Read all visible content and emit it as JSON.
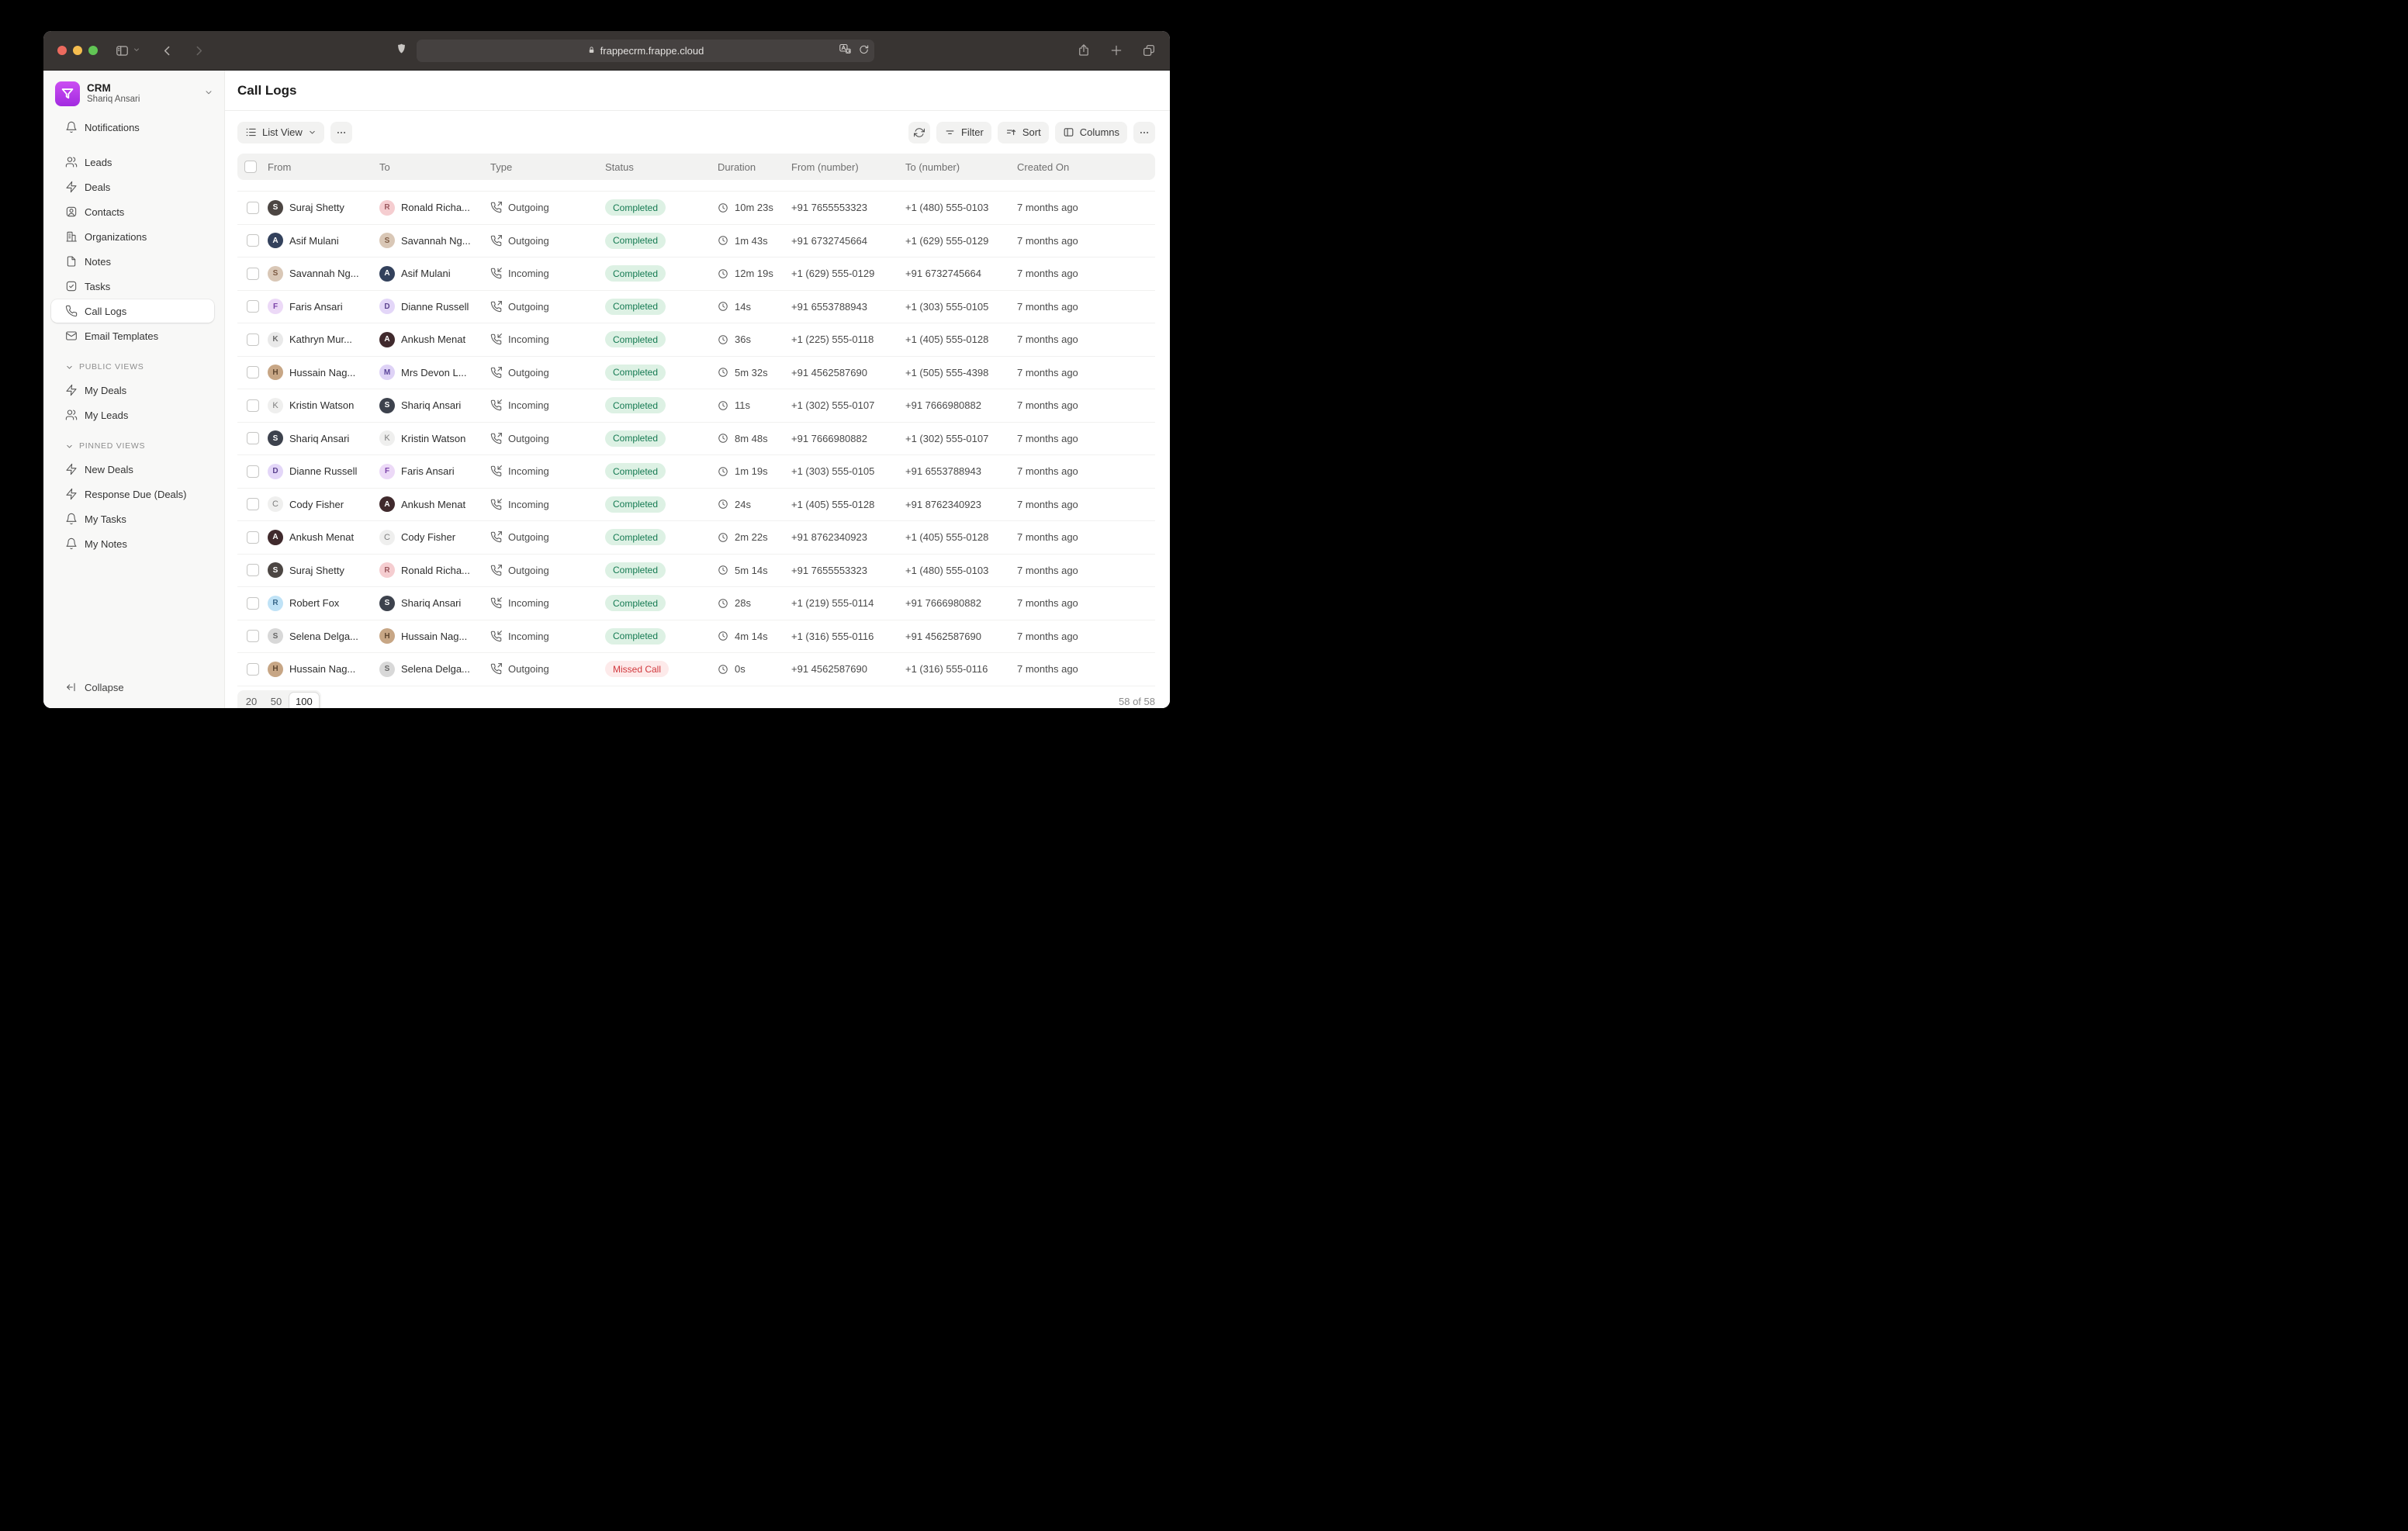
{
  "browser": {
    "url": "frappecrm.frappe.cloud",
    "titlebar_icons": [
      "sidebar-toggle-icon",
      "chevron-down-icon",
      "back-icon",
      "forward-icon",
      "shield-icon",
      "lock-icon",
      "translate-icon",
      "reload-icon",
      "share-icon",
      "new-tab-icon",
      "tabs-icon"
    ]
  },
  "app_header": {
    "app_name": "CRM",
    "user_name": "Shariq Ansari"
  },
  "sidebar": {
    "items": [
      {
        "label": "Notifications",
        "icon": "bell-icon",
        "active": false
      },
      {
        "label": "Leads",
        "icon": "users-icon",
        "active": false
      },
      {
        "label": "Deals",
        "icon": "zap-icon",
        "active": false
      },
      {
        "label": "Contacts",
        "icon": "contact-card-icon",
        "active": false
      },
      {
        "label": "Organizations",
        "icon": "building-icon",
        "active": false
      },
      {
        "label": "Notes",
        "icon": "file-icon",
        "active": false
      },
      {
        "label": "Tasks",
        "icon": "check-square-icon",
        "active": false
      },
      {
        "label": "Call Logs",
        "icon": "phone-icon",
        "active": true
      },
      {
        "label": "Email Templates",
        "icon": "mail-icon",
        "active": false
      }
    ],
    "sections": [
      {
        "title": "PUBLIC VIEWS",
        "items": [
          {
            "label": "My Deals",
            "icon": "zap-icon"
          },
          {
            "label": "My Leads",
            "icon": "users-icon"
          }
        ]
      },
      {
        "title": "PINNED VIEWS",
        "items": [
          {
            "label": "New Deals",
            "icon": "zap-icon"
          },
          {
            "label": "Response Due (Deals)",
            "icon": "zap-icon"
          },
          {
            "label": "My Tasks",
            "icon": "bell-icon"
          },
          {
            "label": "My Notes",
            "icon": "bell-icon"
          }
        ]
      }
    ],
    "collapse_label": "Collapse"
  },
  "main": {
    "title": "Call Logs",
    "toolbar": {
      "view_button": "List View",
      "more_button": "...",
      "filter_label": "Filter",
      "sort_label": "Sort",
      "columns_label": "Columns"
    },
    "table": {
      "headers": [
        "From",
        "To",
        "Type",
        "Status",
        "Duration",
        "From (number)",
        "To (number)",
        "Created On"
      ],
      "rows": [
        {
          "from": {
            "name": "Suraj Shetty",
            "initial": "S",
            "bg": "#4c4643",
            "fg": "#ffffff",
            "letter": false
          },
          "to": {
            "name": "Ronald Richa...",
            "initial": "R",
            "bg": "#f5cdd0",
            "fg": "#9c5a60",
            "letter": false
          },
          "type": "Outgoing",
          "status": "Completed",
          "duration": "10m 23s",
          "from_number": "+91 7655553323",
          "to_number": "+1 (480) 555-0103",
          "created_on": "7 months ago"
        },
        {
          "from": {
            "name": "Asif Mulani",
            "initial": "A",
            "bg": "#33415c",
            "fg": "#ffffff",
            "letter": false
          },
          "to": {
            "name": "Savannah Ng...",
            "initial": "S",
            "bg": "#d9c7b6",
            "fg": "#7d5b43",
            "letter": false
          },
          "type": "Outgoing",
          "status": "Completed",
          "duration": "1m 43s",
          "from_number": "+91 6732745664",
          "to_number": "+1 (629) 555-0129",
          "created_on": "7 months ago"
        },
        {
          "from": {
            "name": "Savannah Ng...",
            "initial": "S",
            "bg": "#d9c7b6",
            "fg": "#7d5b43",
            "letter": false
          },
          "to": {
            "name": "Asif Mulani",
            "initial": "A",
            "bg": "#33415c",
            "fg": "#ffffff",
            "letter": false
          },
          "type": "Incoming",
          "status": "Completed",
          "duration": "12m 19s",
          "from_number": "+1 (629) 555-0129",
          "to_number": "+91 6732745664",
          "created_on": "7 months ago"
        },
        {
          "from": {
            "name": "Faris Ansari",
            "initial": "F",
            "bg": "#ecd9f7",
            "fg": "#7b42a8",
            "letter": false
          },
          "to": {
            "name": "Dianne Russell",
            "initial": "D",
            "bg": "#e3d6f8",
            "fg": "#5c438f",
            "letter": false
          },
          "type": "Outgoing",
          "status": "Completed",
          "duration": "14s",
          "from_number": "+91 6553788943",
          "to_number": "+1 (303) 555-0105",
          "created_on": "7 months ago"
        },
        {
          "from": {
            "name": "Kathryn Mur...",
            "initial": "K",
            "bg": "#e9e9e9",
            "fg": "#6d6d6d",
            "letter": false
          },
          "to": {
            "name": "Ankush Menat",
            "initial": "A",
            "bg": "#402a2d",
            "fg": "#ffffff",
            "letter": false
          },
          "type": "Incoming",
          "status": "Completed",
          "duration": "36s",
          "from_number": "+1 (225) 555-0118",
          "to_number": "+1 (405) 555-0128",
          "created_on": "7 months ago"
        },
        {
          "from": {
            "name": "Hussain Nag...",
            "initial": "H",
            "bg": "#c7a685",
            "fg": "#5f4630",
            "letter": false
          },
          "to": {
            "name": "Mrs Devon L...",
            "initial": "M",
            "bg": "#ded2f6",
            "fg": "#5c459a",
            "letter": false
          },
          "type": "Outgoing",
          "status": "Completed",
          "duration": "5m 32s",
          "from_number": "+91 4562587690",
          "to_number": "+1 (505) 555-4398",
          "created_on": "7 months ago"
        },
        {
          "from": {
            "name": "Kristin Watson",
            "initial": "K",
            "bg": "#efefee",
            "fg": "#7e7e7e",
            "letter": true
          },
          "to": {
            "name": "Shariq Ansari",
            "initial": "S",
            "bg": "#3d424d",
            "fg": "#ffffff",
            "letter": false
          },
          "type": "Incoming",
          "status": "Completed",
          "duration": "11s",
          "from_number": "+1 (302) 555-0107",
          "to_number": "+91 7666980882",
          "created_on": "7 months ago"
        },
        {
          "from": {
            "name": "Shariq Ansari",
            "initial": "S",
            "bg": "#3d424d",
            "fg": "#ffffff",
            "letter": false
          },
          "to": {
            "name": "Kristin Watson",
            "initial": "K",
            "bg": "#efefee",
            "fg": "#7e7e7e",
            "letter": true
          },
          "type": "Outgoing",
          "status": "Completed",
          "duration": "8m 48s",
          "from_number": "+91 7666980882",
          "to_number": "+1 (302) 555-0107",
          "created_on": "7 months ago"
        },
        {
          "from": {
            "name": "Dianne Russell",
            "initial": "D",
            "bg": "#e3d6f8",
            "fg": "#5c438f",
            "letter": false
          },
          "to": {
            "name": "Faris Ansari",
            "initial": "F",
            "bg": "#ecd9f7",
            "fg": "#7b42a8",
            "letter": false
          },
          "type": "Incoming",
          "status": "Completed",
          "duration": "1m 19s",
          "from_number": "+1 (303) 555-0105",
          "to_number": "+91 6553788943",
          "created_on": "7 months ago"
        },
        {
          "from": {
            "name": "Cody Fisher",
            "initial": "C",
            "bg": "#efefee",
            "fg": "#7e7e7e",
            "letter": true
          },
          "to": {
            "name": "Ankush Menat",
            "initial": "A",
            "bg": "#402a2d",
            "fg": "#ffffff",
            "letter": false
          },
          "type": "Incoming",
          "status": "Completed",
          "duration": "24s",
          "from_number": "+1 (405) 555-0128",
          "to_number": "+91 8762340923",
          "created_on": "7 months ago"
        },
        {
          "from": {
            "name": "Ankush Menat",
            "initial": "A",
            "bg": "#402a2d",
            "fg": "#ffffff",
            "letter": false
          },
          "to": {
            "name": "Cody Fisher",
            "initial": "C",
            "bg": "#efefee",
            "fg": "#7e7e7e",
            "letter": true
          },
          "type": "Outgoing",
          "status": "Completed",
          "duration": "2m 22s",
          "from_number": "+91 8762340923",
          "to_number": "+1 (405) 555-0128",
          "created_on": "7 months ago"
        },
        {
          "from": {
            "name": "Suraj Shetty",
            "initial": "S",
            "bg": "#4c4643",
            "fg": "#ffffff",
            "letter": false
          },
          "to": {
            "name": "Ronald Richa...",
            "initial": "R",
            "bg": "#f5cdd0",
            "fg": "#9c5a60",
            "letter": false
          },
          "type": "Outgoing",
          "status": "Completed",
          "duration": "5m 14s",
          "from_number": "+91 7655553323",
          "to_number": "+1 (480) 555-0103",
          "created_on": "7 months ago"
        },
        {
          "from": {
            "name": "Robert Fox",
            "initial": "R",
            "bg": "#bfe2f6",
            "fg": "#39688a",
            "letter": false
          },
          "to": {
            "name": "Shariq Ansari",
            "initial": "S",
            "bg": "#3d424d",
            "fg": "#ffffff",
            "letter": false
          },
          "type": "Incoming",
          "status": "Completed",
          "duration": "28s",
          "from_number": "+1 (219) 555-0114",
          "to_number": "+91 7666980882",
          "created_on": "7 months ago"
        },
        {
          "from": {
            "name": "Selena Delga...",
            "initial": "S",
            "bg": "#d8d8d8",
            "fg": "#666666",
            "letter": false
          },
          "to": {
            "name": "Hussain Nag...",
            "initial": "H",
            "bg": "#c7a685",
            "fg": "#5f4630",
            "letter": false
          },
          "type": "Incoming",
          "status": "Completed",
          "duration": "4m 14s",
          "from_number": "+1 (316) 555-0116",
          "to_number": "+91 4562587690",
          "created_on": "7 months ago"
        },
        {
          "from": {
            "name": "Hussain Nag...",
            "initial": "H",
            "bg": "#c7a685",
            "fg": "#5f4630",
            "letter": false
          },
          "to": {
            "name": "Selena Delga...",
            "initial": "S",
            "bg": "#d8d8d8",
            "fg": "#666666",
            "letter": false
          },
          "type": "Outgoing",
          "status": "Missed Call",
          "duration": "0s",
          "from_number": "+91 4562587690",
          "to_number": "+1 (316) 555-0116",
          "created_on": "7 months ago"
        }
      ]
    },
    "pagination": {
      "page_sizes": [
        "20",
        "50",
        "100"
      ],
      "active_size": "100",
      "range_label": "58 of 58"
    }
  },
  "colors": {
    "titlebar_bg": "#383432",
    "sidebar_bg": "#f8f8f7",
    "logo_gradient_top": "#cb4ef2",
    "logo_gradient_bottom": "#a22be0",
    "status_completed_bg": "#ddf1e4",
    "status_completed_text": "#157a52",
    "status_missed_bg": "#fdeaea",
    "status_missed_text": "#d1383d"
  }
}
